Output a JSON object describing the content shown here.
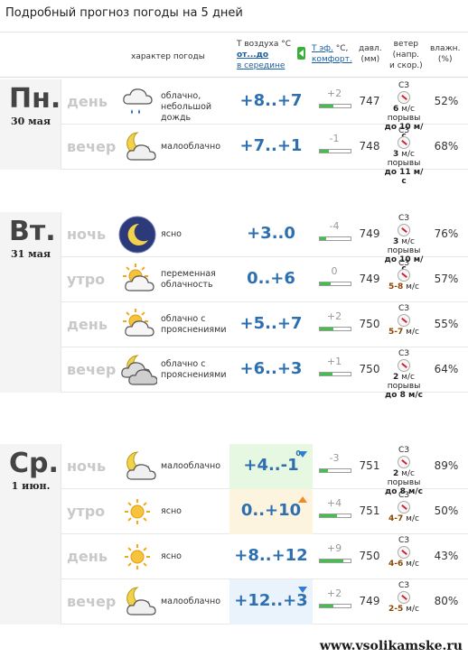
{
  "title": "Подробный прогноз погоды на 5 дней",
  "header": {
    "char": "характер погоды",
    "temp_title": "T воздуха °C",
    "temp_link": "от...до",
    "temp_link2": "в середине",
    "feel_link": "Т эф.",
    "feel_unit": "°C,",
    "feel_link2": "комфорт.",
    "pres1": "давл.",
    "pres2": "(мм)",
    "wind1": "ветер",
    "wind2": "(напр.",
    "wind3": "и скор.)",
    "hum1": "влажн.",
    "hum2": "(%)"
  },
  "days": [
    {
      "name": "Пн.",
      "date": "30 мая",
      "rows": [
        {
          "part": "день",
          "icon": "cloud-rain-icon",
          "desc": "облачно, небольшой дождь",
          "temp": "+8..+7",
          "change": "",
          "feel": "+2",
          "feelfill": 0.45,
          "pres": "747",
          "wind_dir": "СЗ",
          "wind_speed": "6",
          "wind_unit": "м/с",
          "gust": "порывы",
          "gust_val": "до 10 м/с",
          "hum": "52%"
        },
        {
          "part": "вечер",
          "icon": "moon-cloud-icon",
          "desc": "малооблачно",
          "temp": "+7..+1",
          "change": "",
          "feel": "-1",
          "feelfill": 0.3,
          "pres": "748",
          "wind_dir": "СЗ",
          "wind_speed": "3",
          "wind_unit": "м/с",
          "gust": "порывы",
          "gust_val": "до 11 м/с",
          "hum": "68%"
        }
      ]
    },
    {
      "name": "Вт.",
      "date": "31 мая",
      "rows": [
        {
          "part": "ночь",
          "icon": "moon-icon",
          "desc": "ясно",
          "temp": "+3..0",
          "change": "",
          "feel": "-4",
          "feelfill": 0.2,
          "pres": "749",
          "wind_dir": "СЗ",
          "wind_speed": "3",
          "wind_unit": "м/с",
          "gust": "порывы",
          "gust_val": "до 10 м/с",
          "hum": "76%"
        },
        {
          "part": "утро",
          "icon": "sun-cloud-icon",
          "desc": "переменная облачность",
          "temp": "0..+6",
          "change": "",
          "feel": "0",
          "feelfill": 0.35,
          "pres": "749",
          "wind_dir": "СЗ",
          "wind_speed": "5-8",
          "wind_unit": "м/с",
          "gust": "",
          "gust_val": "",
          "hum": "57%"
        },
        {
          "part": "день",
          "icon": "sun-cloud-icon",
          "desc": "облачно с прояснениями",
          "temp": "+5..+7",
          "change": "",
          "feel": "+2",
          "feelfill": 0.45,
          "pres": "750",
          "wind_dir": "СЗ",
          "wind_speed": "5-7",
          "wind_unit": "м/с",
          "gust": "",
          "gust_val": "",
          "hum": "55%"
        },
        {
          "part": "вечер",
          "icon": "moon-clouds-icon",
          "desc": "облачно с прояснениями",
          "temp": "+6..+3",
          "change": "",
          "feel": "+1",
          "feelfill": 0.4,
          "pres": "750",
          "wind_dir": "СЗ",
          "wind_speed": "2",
          "wind_unit": "м/с",
          "gust": "порывы",
          "gust_val": "до 8 м/с",
          "hum": "64%"
        }
      ]
    },
    {
      "name": "Ср.",
      "date": "1 июн.",
      "rows": [
        {
          "part": "ночь",
          "icon": "moon-cloud-icon",
          "desc": "малооблачно",
          "temp": "+4..-1",
          "change": "0",
          "changeDir": "down",
          "bg": "#e6f7e2",
          "feel": "-3",
          "feelfill": 0.25,
          "pres": "751",
          "wind_dir": "СЗ",
          "wind_speed": "2",
          "wind_unit": "м/с",
          "gust": "порывы",
          "gust_val": "до 8 м/с",
          "hum": "89%"
        },
        {
          "part": "утро",
          "icon": "sun-icon",
          "desc": "ясно",
          "temp": "0..+10",
          "change": "",
          "changeDir": "up",
          "bg": "#fdf4df",
          "feel": "+4",
          "feelfill": 0.55,
          "pres": "751",
          "wind_dir": "СЗ",
          "wind_speed": "4-7",
          "wind_unit": "м/с",
          "gust": "",
          "gust_val": "",
          "hum": "50%"
        },
        {
          "part": "день",
          "icon": "sun-icon",
          "desc": "ясно",
          "temp": "+8..+12",
          "change": "",
          "feel": "+9",
          "feelfill": 0.75,
          "pres": "750",
          "wind_dir": "СЗ",
          "wind_speed": "4-6",
          "wind_unit": "м/с",
          "gust": "",
          "gust_val": "",
          "hum": "43%"
        },
        {
          "part": "вечер",
          "icon": "moon-cloud-icon",
          "desc": "малооблачно",
          "temp": "+12..+3",
          "change": "",
          "changeDir": "down",
          "bg": "#eaf3fb",
          "feel": "+2",
          "feelfill": 0.45,
          "pres": "749",
          "wind_dir": "СЗ",
          "wind_speed": "2-5",
          "wind_unit": "м/с",
          "gust": "",
          "gust_val": "",
          "hum": "80%"
        }
      ]
    }
  ],
  "watermark": "www.vsolikamske.ru"
}
